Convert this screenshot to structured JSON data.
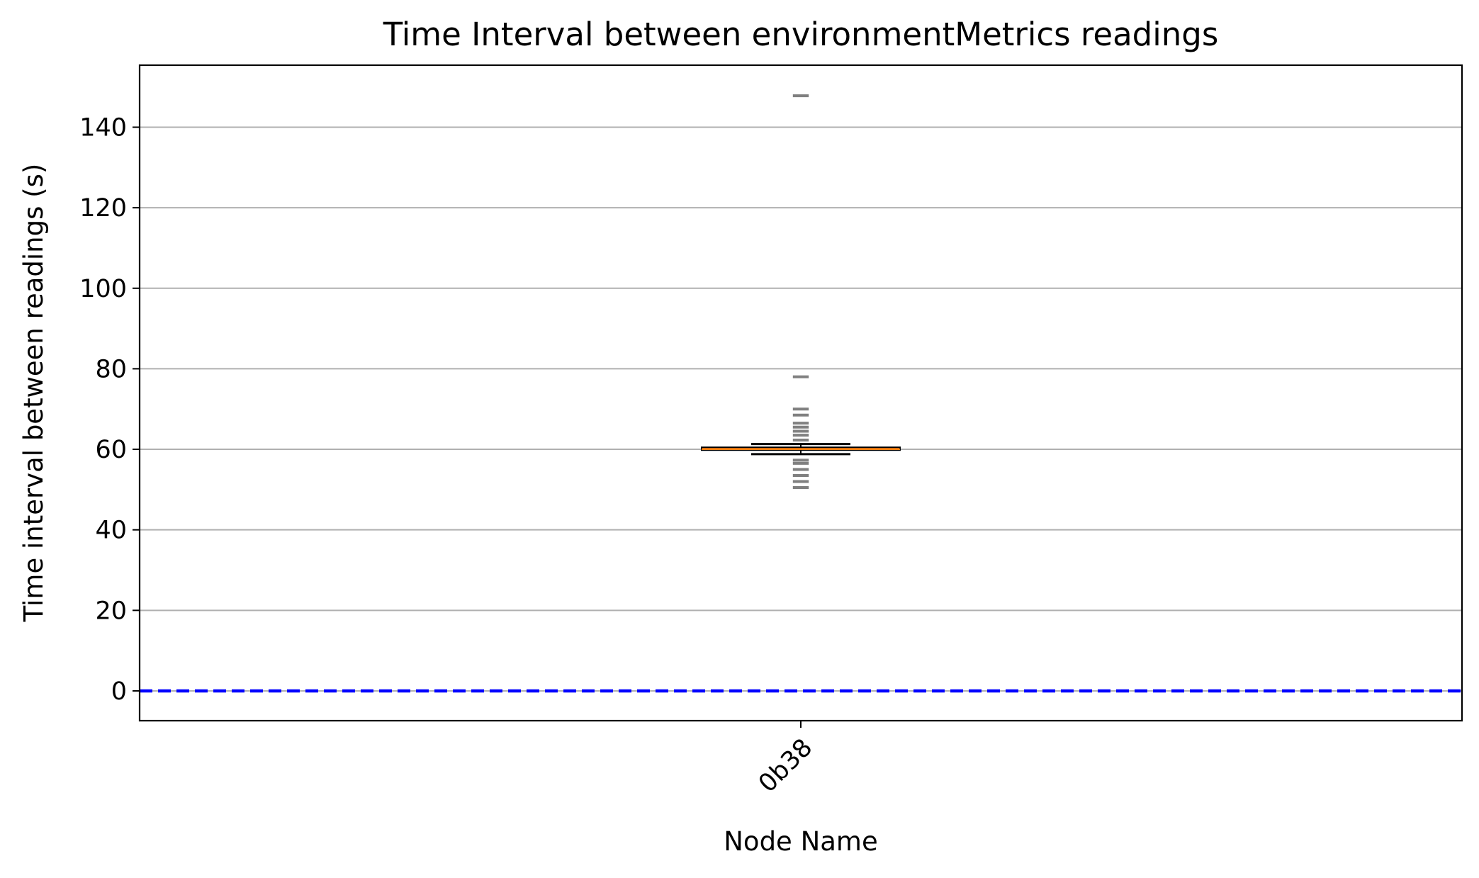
{
  "chart_data": {
    "type": "box",
    "title": "Time Interval between environmentMetrics readings",
    "xlabel": "Node Name",
    "ylabel": "Time interval between readings (s)",
    "categories": [
      "0b38"
    ],
    "ylim": [
      -7.4,
      155.4
    ],
    "yticks": [
      0,
      20,
      40,
      60,
      80,
      100,
      120,
      140
    ],
    "grid": "y",
    "legend": "none",
    "boxes": [
      {
        "category": "0b38",
        "q1": 60.0,
        "median": 60.0,
        "q3": 60.5,
        "whisker_low": 58.8,
        "whisker_high": 61.3,
        "outliers": [
          50.5,
          52.0,
          53.5,
          55.0,
          56.5,
          57.3,
          62.3,
          63.5,
          64.5,
          65.5,
          66.5,
          68.5,
          70.0,
          78.0,
          147.8
        ]
      }
    ],
    "reference_line": {
      "y": 0,
      "style": "dashed"
    },
    "colors": {
      "box_fill": "#ff7f0e",
      "box_edge": "#000000",
      "whisker": "#000000",
      "outlier": "#808080",
      "grid": "#b0b0b0",
      "reference_line": "#0000ff"
    }
  }
}
